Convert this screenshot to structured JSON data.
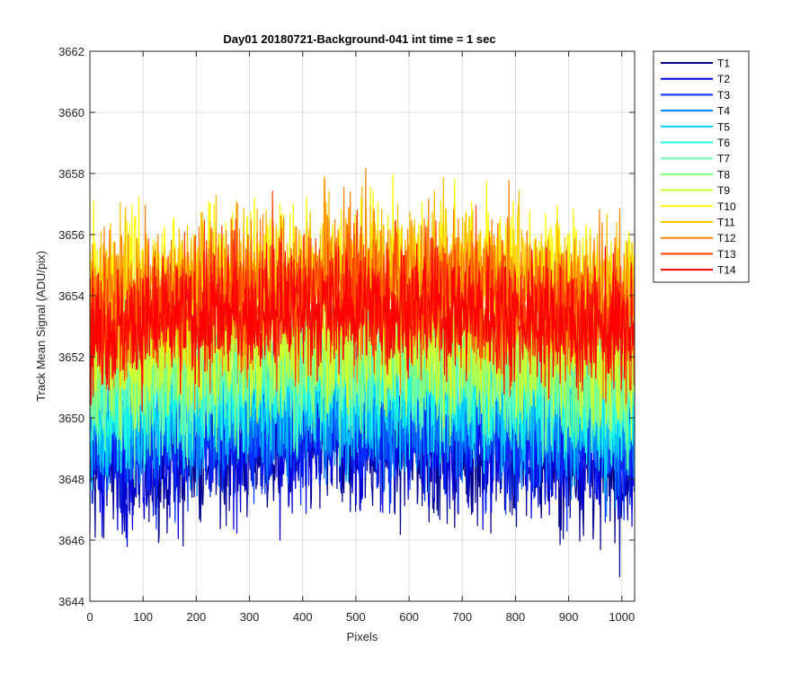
{
  "chart_data": {
    "type": "line",
    "title": "Day01 20180721-Background-041 int time = 1 sec",
    "xlabel": "Pixels",
    "ylabel": "Track Mean Signal (ADU/pix)",
    "xlim": [
      0,
      1024
    ],
    "ylim": [
      3644,
      3662
    ],
    "xticks": [
      0,
      100,
      200,
      300,
      400,
      500,
      600,
      700,
      800,
      900,
      1000
    ],
    "yticks": [
      3644,
      3646,
      3648,
      3650,
      3652,
      3654,
      3656,
      3658,
      3660,
      3662
    ],
    "grid": true,
    "legend_position": "outside-top-right",
    "points_per_series": 1024,
    "series": [
      {
        "name": "T1",
        "color": "#00008f",
        "mean": 3648.6,
        "noise": 1.1
      },
      {
        "name": "T2",
        "color": "#0000df",
        "mean": 3649.0,
        "noise": 1.1
      },
      {
        "name": "T3",
        "color": "#0030ff",
        "mean": 3649.5,
        "noise": 1.1
      },
      {
        "name": "T4",
        "color": "#0080ff",
        "mean": 3650.0,
        "noise": 1.1
      },
      {
        "name": "T5",
        "color": "#00cfff",
        "mean": 3650.5,
        "noise": 1.1
      },
      {
        "name": "T6",
        "color": "#20ffdf",
        "mean": 3651.0,
        "noise": 1.1
      },
      {
        "name": "T7",
        "color": "#70ffb0",
        "mean": 3651.4,
        "noise": 1.1
      },
      {
        "name": "T8",
        "color": "#80ff80",
        "mean": 3651.8,
        "noise": 1.1
      },
      {
        "name": "T9",
        "color": "#cfff30",
        "mean": 3652.2,
        "noise": 1.1
      },
      {
        "name": "T10",
        "color": "#ffff00",
        "mean": 3654.5,
        "noise": 1.2
      },
      {
        "name": "T11",
        "color": "#ffbf00",
        "mean": 3654.3,
        "noise": 1.2
      },
      {
        "name": "T12",
        "color": "#ff8000",
        "mean": 3654.0,
        "noise": 1.2
      },
      {
        "name": "T13",
        "color": "#ff4000",
        "mean": 3653.6,
        "noise": 1.1
      },
      {
        "name": "T14",
        "color": "#ff0000",
        "mean": 3653.2,
        "noise": 1.0
      }
    ]
  }
}
